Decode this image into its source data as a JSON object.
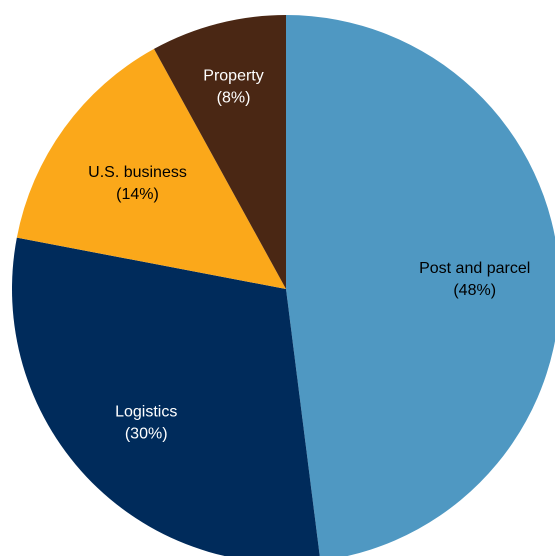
{
  "chart_data": {
    "type": "pie",
    "title": "",
    "legend": "none",
    "slices": [
      {
        "name": "Post and parcel",
        "value": 48,
        "display": "(48%)",
        "color": "#4f98c2",
        "text_color": "#000000"
      },
      {
        "name": "Logistics",
        "value": 30,
        "display": "(30%)",
        "color": "#002b5b",
        "text_color": "#ffffff"
      },
      {
        "name": "U.S. business",
        "value": 14,
        "display": "(14%)",
        "color": "#fba81a",
        "text_color": "#000000"
      },
      {
        "name": "Property",
        "value": 8,
        "display": "(8%)",
        "color": "#4a2714",
        "text_color": "#ffffff"
      }
    ]
  }
}
